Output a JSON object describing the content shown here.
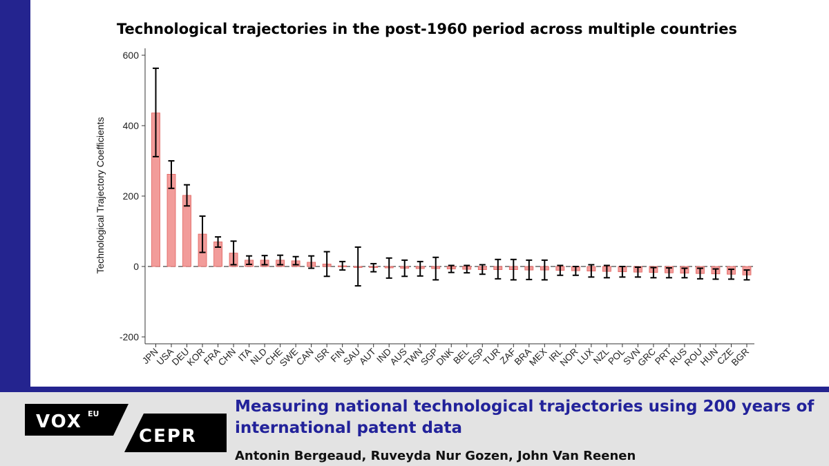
{
  "chart_data": {
    "type": "bar",
    "title": "Technological trajectories in the post-1960 period across multiple countries",
    "ylabel": "Technological Trajectory Coefficients",
    "xlabel": "",
    "ylim": [
      -220,
      620
    ],
    "yticks": [
      -200,
      0,
      200,
      400,
      600
    ],
    "grid": false,
    "categories": [
      "JPN",
      "USA",
      "DEU",
      "KOR",
      "FRA",
      "CHN",
      "ITA",
      "NLD",
      "CHE",
      "SWE",
      "CAN",
      "ISR",
      "FIN",
      "SAU",
      "AUT",
      "IND",
      "AUS",
      "TWN",
      "SGP",
      "DNK",
      "BEL",
      "ESP",
      "TUR",
      "ZAF",
      "BRA",
      "MEX",
      "IRL",
      "NOR",
      "LUX",
      "NZL",
      "POL",
      "SVN",
      "GRC",
      "PRT",
      "RUS",
      "ROU",
      "HUN",
      "CZE",
      "BGR"
    ],
    "values": [
      436,
      262,
      202,
      92,
      70,
      38,
      18,
      18,
      18,
      16,
      12,
      7,
      2,
      0,
      -3,
      -4,
      -5,
      -6,
      -6,
      -7,
      -8,
      -9,
      -9,
      -9,
      -10,
      -10,
      -11,
      -12,
      -13,
      -14,
      -15,
      -16,
      -17,
      -18,
      -19,
      -20,
      -21,
      -22,
      -24
    ],
    "ci_low": [
      312,
      222,
      172,
      40,
      55,
      5,
      6,
      5,
      5,
      5,
      -5,
      -28,
      -10,
      -55,
      -15,
      -33,
      -28,
      -27,
      -38,
      -17,
      -18,
      -22,
      -35,
      -38,
      -37,
      -38,
      -25,
      -25,
      -30,
      -32,
      -30,
      -30,
      -32,
      -32,
      -32,
      -35,
      -36,
      -36,
      -38
    ],
    "ci_high": [
      563,
      300,
      232,
      143,
      84,
      72,
      30,
      31,
      32,
      28,
      30,
      42,
      14,
      55,
      8,
      24,
      18,
      14,
      26,
      3,
      3,
      5,
      20,
      20,
      18,
      18,
      3,
      0,
      5,
      3,
      0,
      -2,
      -3,
      -4,
      -5,
      -5,
      -7,
      -8,
      -10
    ],
    "bar_color": "#f29c9a",
    "bar_edge": "#e0605c",
    "errorbar_color": "#000000"
  },
  "footer": {
    "logo_vox": "VOX",
    "logo_eu": "EU",
    "logo_cepr": "CEPR",
    "headline": "Measuring national technological trajectories using 200 years of international patent data",
    "authors": "Antonin Bergeaud, Ruveyda Nur Gozen, John Van Reenen"
  },
  "colors": {
    "frame": "#24248f",
    "headline": "#22229a"
  }
}
